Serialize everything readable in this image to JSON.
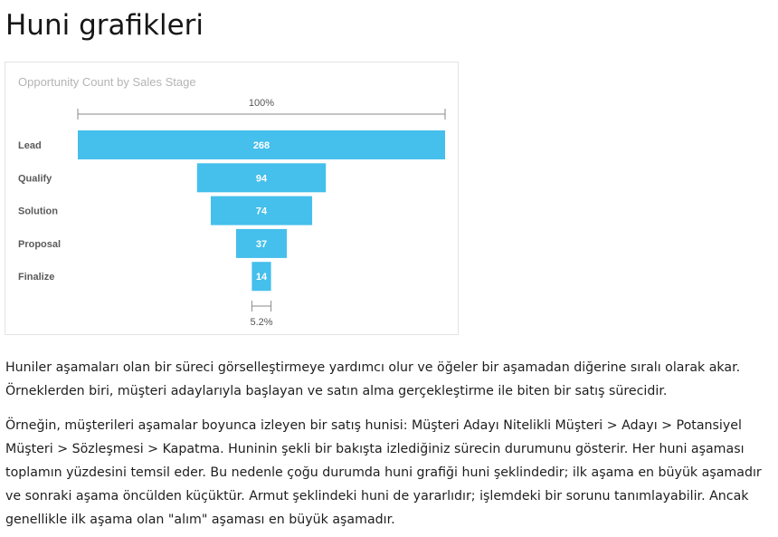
{
  "page": {
    "title": "Huni grafikleri"
  },
  "chart_data": {
    "type": "funnel",
    "title": "Opportunity Count by Sales Stage",
    "categories": [
      "Lead",
      "Qualify",
      "Solution",
      "Proposal",
      "Finalize"
    ],
    "values": [
      268,
      94,
      74,
      37,
      14
    ],
    "top_label": "100%",
    "bottom_label": "5.2%",
    "bar_color": "#45bfec",
    "value_label_color": "#ffffff"
  },
  "body": {
    "paragraph1": "Huniler aşamaları olan bir süreci görselleştirmeye yardımcı olur ve öğeler bir aşamadan diğerine sıralı olarak akar. Örneklerden biri, müşteri adaylarıyla başlayan ve satın alma gerçekleştirme ile biten bir satış sürecidir.",
    "paragraph2": "Örneğin, müşterileri aşamalar boyunca izleyen bir satış hunisi: Müşteri Adayı Nitelikli Müşteri > Adayı > Potansiyel Müşteri > Sözleşmesi > Kapatma. Huninin şekli bir bakışta izlediğiniz sürecin durumunu gösterir. Her huni aşaması toplamın yüzdesini temsil eder. Bu nedenle çoğu durumda huni grafiği huni şeklindedir; ilk aşama en büyük aşamadır ve sonraki aşama öncülden küçüktür. Armut şeklindeki huni de yararlıdır; işlemdeki bir sorunu tanımlayabilir. Ancak genellikle ilk aşama olan \"alım\" aşaması en büyük aşamadır."
  }
}
